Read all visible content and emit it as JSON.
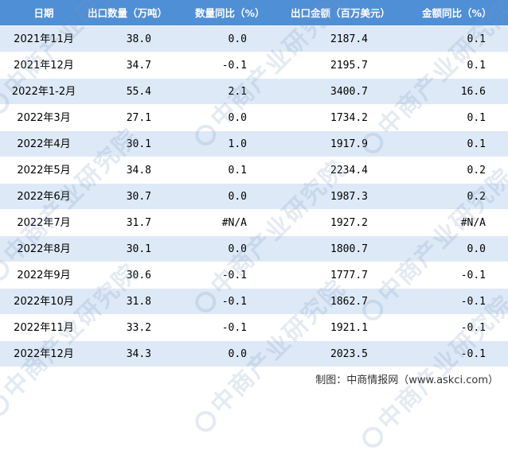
{
  "table": {
    "headers": [
      "日期",
      "出口数量（万吨）",
      "数量同比（%）",
      "出口金额（百万美元）",
      "金额同比（%）"
    ],
    "rows": [
      [
        "2021年11月",
        "38.0",
        "0.0",
        "2187.4",
        "0.1"
      ],
      [
        "2021年12月",
        "34.7",
        "-0.1",
        "2195.7",
        "0.1"
      ],
      [
        "2022年1-2月",
        "55.4",
        "2.1",
        "3400.7",
        "16.6"
      ],
      [
        "2022年3月",
        "27.1",
        "0.0",
        "1734.2",
        "0.1"
      ],
      [
        "2022年4月",
        "30.1",
        "1.0",
        "1917.9",
        "0.1"
      ],
      [
        "2022年5月",
        "34.8",
        "0.1",
        "2234.4",
        "0.2"
      ],
      [
        "2022年6月",
        "30.7",
        "0.0",
        "1987.3",
        "0.2"
      ],
      [
        "2022年7月",
        "31.7",
        "#N/A",
        "1927.2",
        "#N/A"
      ],
      [
        "2022年8月",
        "30.1",
        "0.0",
        "1800.7",
        "0.0"
      ],
      [
        "2022年9月",
        "30.6",
        "-0.1",
        "1777.7",
        "-0.1"
      ],
      [
        "2022年10月",
        "31.8",
        "-0.1",
        "1862.7",
        "-0.1"
      ],
      [
        "2022年11月",
        "33.2",
        "-0.1",
        "1921.1",
        "-0.1"
      ],
      [
        "2022年12月",
        "34.3",
        "0.0",
        "2023.5",
        "-0.1"
      ]
    ]
  },
  "footer": {
    "source": "制图：中商情报网（www.askci.com）"
  },
  "watermark": {
    "text": "中商产业研究院"
  },
  "colors": {
    "header_bg": "#4f8fd6",
    "odd_row_bg": "#dde9f6",
    "even_row_bg": "#ffffff"
  }
}
